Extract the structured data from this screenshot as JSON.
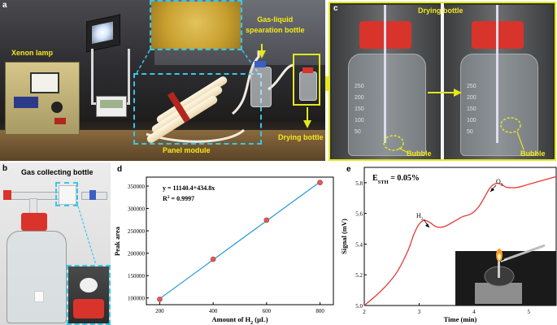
{
  "panels": {
    "a": {
      "letter": "a",
      "labels": {
        "xenon_lamp": "Xenon lamp",
        "gas_liquid": "Gas-liquid\nspearation bottle",
        "panel_module": "Panel module",
        "drying_bottle": "Drying bottle"
      }
    },
    "b": {
      "letter": "b",
      "title": "Gas collecting bottle"
    },
    "c": {
      "letter": "c",
      "title": "Drying bottle",
      "bubble_left": "Bubble",
      "bubble_right": "Bubble",
      "scale_marks": [
        "250",
        "200",
        "150",
        "100",
        "50"
      ]
    },
    "d": {
      "letter": "d"
    },
    "e": {
      "letter": "e"
    }
  },
  "chart_data": [
    {
      "type": "line",
      "panel": "d",
      "xlabel": "Amount of H",
      "xlabel_sub": "2",
      "xlabel_unit": " (µL)",
      "ylabel": "Peak area",
      "x": [
        200,
        400,
        600,
        800
      ],
      "y": [
        97000,
        186500,
        274000,
        358000
      ],
      "fit_equation": "y = 11140.4+434.8x",
      "r2_label": "R",
      "r2_sup": "2",
      "r2_value": " = 0.9997",
      "xlim": [
        150,
        850
      ],
      "ylim": [
        85000,
        370000
      ],
      "xticks": [
        "200",
        "400",
        "600",
        "800"
      ],
      "yticks": [
        "100000",
        "150000",
        "200000",
        "250000",
        "300000",
        "350000"
      ],
      "colors": {
        "line": "#2196d8",
        "marker": "#e35a5a"
      }
    },
    {
      "type": "line",
      "panel": "e",
      "xlabel": "Time (min)",
      "ylabel": "Signal (mV)",
      "eff_main": "E",
      "eff_sub": "STH",
      "eff_value": " = 0.05%",
      "peak1_main": "H",
      "peak1_sub": "2",
      "peak2_main": "O",
      "peak2_sub": "2",
      "x": [
        2.0,
        2.2,
        2.4,
        2.6,
        2.8,
        2.9,
        3.0,
        3.1,
        3.2,
        3.3,
        3.4,
        3.5,
        3.6,
        3.7,
        3.8,
        3.9,
        4.0,
        4.1,
        4.2,
        4.3,
        4.4,
        4.5,
        4.6,
        4.8,
        5.0,
        5.2,
        5.5
      ],
      "y": [
        5.0,
        5.06,
        5.13,
        5.22,
        5.36,
        5.46,
        5.53,
        5.555,
        5.54,
        5.515,
        5.51,
        5.52,
        5.54,
        5.56,
        5.58,
        5.59,
        5.61,
        5.65,
        5.71,
        5.77,
        5.795,
        5.79,
        5.77,
        5.77,
        5.79,
        5.81,
        5.84
      ],
      "xlim": [
        2.0,
        5.5
      ],
      "ylim": [
        5.0,
        5.9
      ],
      "xticks": [
        "2",
        "3",
        "4",
        "5"
      ],
      "yticks": [
        "5.0",
        "5.2",
        "5.4",
        "5.6",
        "5.8"
      ],
      "colors": {
        "line": "#e53935"
      }
    }
  ]
}
